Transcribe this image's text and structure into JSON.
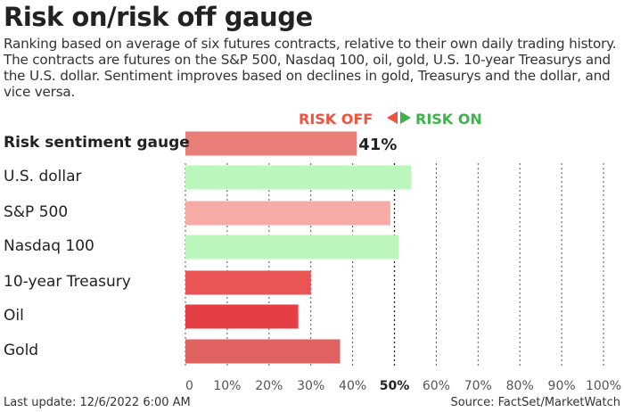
{
  "header": {
    "title": "Risk on/risk off gauge",
    "subtitle": "Ranking based on average of six futures contracts, relative to their own daily trading history. The contracts are futures on the S&P 500, Nasdaq 100, oil, gold, U.S. 10-year Treasurys and the U.S. dollar. Sentiment improves based on declines in gold, Treasurys and the dollar, and vice versa."
  },
  "legend": {
    "risk_off": "RISK OFF",
    "risk_on": "RISK ON",
    "risk_off_color": "#f0523f",
    "risk_on_color": "#3cb44b"
  },
  "chart_data": {
    "type": "bar",
    "orientation": "horizontal",
    "categories": [
      "Risk sentiment gauge",
      "U.S. dollar",
      "S&P 500",
      "Nasdaq 100",
      "10-year Treasury",
      "Oil",
      "Gold"
    ],
    "values": [
      41,
      54,
      49,
      51,
      30,
      27,
      37
    ],
    "colors": [
      "#e97d78",
      "#bbf7bd",
      "#f7aba6",
      "#bbf7bd",
      "#ea5454",
      "#e53f45",
      "#e06362"
    ],
    "data_labels": [
      "41%",
      "",
      "",
      "",
      "",
      "",
      ""
    ],
    "xlim": [
      0,
      100
    ],
    "xticks": [
      "0",
      "10%",
      "20%",
      "30%",
      "40%",
      "50%",
      "60%",
      "70%",
      "80%",
      "90%",
      "100%"
    ],
    "grid": "vertical dotted"
  },
  "footer": {
    "updated": "Last update: 12/6/2022 6:00 AM",
    "source": "Source: FactSet/MarketWatch"
  }
}
